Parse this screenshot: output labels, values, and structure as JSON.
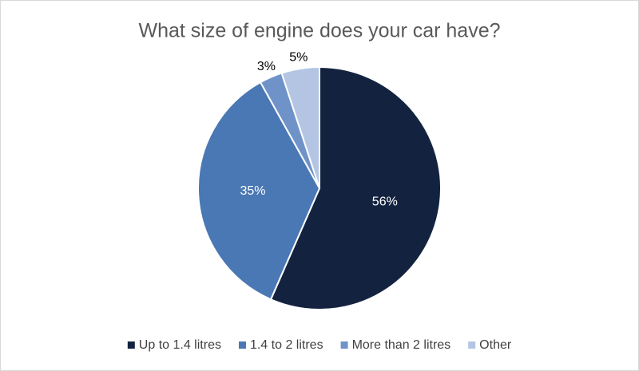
{
  "chart_data": {
    "type": "pie",
    "title": "What size of engine does your car have?",
    "categories": [
      "Up to 1.4 litres",
      "1.4 to 2 litres",
      "More than 2 litres",
      "Other"
    ],
    "values": [
      56,
      35,
      3,
      5
    ],
    "value_labels": [
      "56%",
      "35%",
      "3%",
      "5%"
    ],
    "colors": [
      "#13233f",
      "#4a78b4",
      "#6f93c9",
      "#b4c5e4"
    ],
    "legend": "bottom"
  }
}
